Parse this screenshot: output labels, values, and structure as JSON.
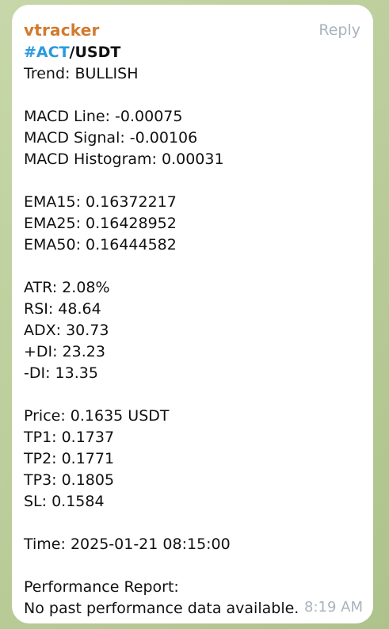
{
  "message": {
    "sender": "vtracker",
    "reply_label": "Reply",
    "pair": {
      "hashtag": "#ACT",
      "separator": "/",
      "quote": "USDT"
    },
    "lines": {
      "trend": "Trend: BULLISH",
      "macd_line": "MACD Line: -0.00075",
      "macd_signal": "MACD Signal: -0.00106",
      "macd_histogram": "MACD Histogram: 0.00031",
      "ema15": "EMA15: 0.16372217",
      "ema25": "EMA25: 0.16428952",
      "ema50": "EMA50: 0.16444582",
      "atr": "ATR: 2.08%",
      "rsi": "RSI: 48.64",
      "adx": "ADX: 30.73",
      "plus_di": "+DI: 23.23",
      "minus_di": "-DI: 13.35",
      "price": "Price: 0.1635 USDT",
      "tp1": "TP1: 0.1737",
      "tp2": "TP2: 0.1771",
      "tp3": "TP3: 0.1805",
      "sl": "SL: 0.1584",
      "time": "Time: 2025-01-21 08:15:00",
      "performance_title": "Performance Report:",
      "performance_text": "No past performance data available."
    },
    "timestamp": "8:19 AM"
  }
}
